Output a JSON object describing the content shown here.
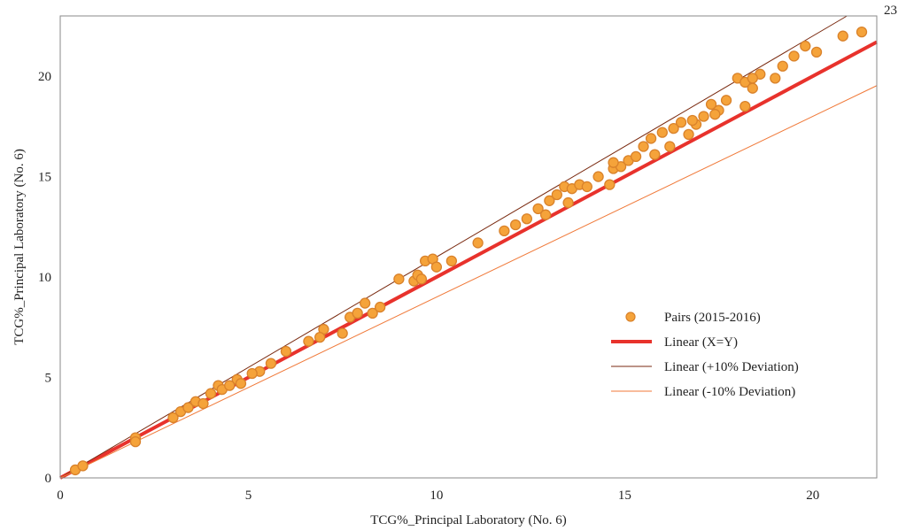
{
  "chart_data": {
    "type": "scatter",
    "title": "",
    "xlabel": "TCG%_Principal Laboratory (No. 6)",
    "ylabel": "TCG%_Principal Laboratory (No. 6)",
    "xlim": [
      0,
      21.7
    ],
    "ylim": [
      0,
      23
    ],
    "x_ticks": [
      "0",
      "5",
      "10",
      "15",
      "20"
    ],
    "y_ticks": [
      "0",
      "5",
      "10",
      "15",
      "20",
      "23"
    ],
    "grid": false,
    "legend_position": "center-right",
    "legend": [
      {
        "label": "Pairs (2015-2016)",
        "kind": "marker",
        "color": "#f5a33a"
      },
      {
        "label": "Linear (X=Y)",
        "kind": "line",
        "color": "#e8322c"
      },
      {
        "label": "Linear (+10% Deviation)",
        "kind": "line",
        "color": "#7a2a10"
      },
      {
        "label": "Linear (-10% Deviation)",
        "kind": "line",
        "color": "#f07a3a"
      }
    ],
    "lines": [
      {
        "name": "Linear (X=Y)",
        "slope": 1.0,
        "color": "#e8322c"
      },
      {
        "name": "Linear (+10% Deviation)",
        "slope": 1.1,
        "color": "#7a2a10"
      },
      {
        "name": "Linear (-10% Deviation)",
        "slope": 0.9,
        "color": "#f07a3a"
      }
    ],
    "series": [
      {
        "name": "Pairs (2015-2016)",
        "color": "#f5a33a",
        "stroke": "#d9822b",
        "points": [
          [
            0.4,
            0.4
          ],
          [
            0.6,
            0.6
          ],
          [
            2.0,
            2.0
          ],
          [
            2.0,
            1.8
          ],
          [
            3.0,
            3.0
          ],
          [
            3.2,
            3.3
          ],
          [
            3.4,
            3.5
          ],
          [
            3.6,
            3.8
          ],
          [
            3.8,
            3.7
          ],
          [
            4.0,
            4.2
          ],
          [
            4.2,
            4.6
          ],
          [
            4.3,
            4.4
          ],
          [
            4.7,
            4.9
          ],
          [
            4.8,
            4.7
          ],
          [
            5.3,
            5.3
          ],
          [
            5.6,
            5.7
          ],
          [
            6.0,
            6.3
          ],
          [
            6.6,
            6.8
          ],
          [
            7.0,
            7.4
          ],
          [
            7.5,
            7.2
          ],
          [
            7.7,
            8.0
          ],
          [
            7.9,
            8.2
          ],
          [
            8.1,
            8.7
          ],
          [
            8.3,
            8.2
          ],
          [
            8.5,
            8.5
          ],
          [
            9.0,
            9.9
          ],
          [
            9.4,
            9.8
          ],
          [
            9.5,
            10.1
          ],
          [
            9.7,
            10.8
          ],
          [
            9.9,
            10.9
          ],
          [
            10.0,
            10.5
          ],
          [
            10.4,
            10.8
          ],
          [
            11.1,
            11.7
          ],
          [
            11.8,
            12.3
          ],
          [
            12.1,
            12.6
          ],
          [
            12.4,
            12.9
          ],
          [
            12.7,
            13.4
          ],
          [
            13.0,
            13.8
          ],
          [
            13.2,
            14.1
          ],
          [
            13.4,
            14.5
          ],
          [
            13.6,
            14.4
          ],
          [
            13.8,
            14.6
          ],
          [
            13.5,
            13.7
          ],
          [
            14.0,
            14.5
          ],
          [
            14.3,
            15.0
          ],
          [
            14.6,
            14.6
          ],
          [
            14.7,
            15.4
          ],
          [
            14.9,
            15.5
          ],
          [
            15.1,
            15.8
          ],
          [
            15.3,
            16.0
          ],
          [
            15.5,
            16.5
          ],
          [
            15.7,
            16.9
          ],
          [
            15.8,
            16.1
          ],
          [
            16.0,
            17.2
          ],
          [
            16.2,
            16.5
          ],
          [
            16.3,
            17.4
          ],
          [
            16.5,
            17.7
          ],
          [
            16.7,
            17.1
          ],
          [
            16.9,
            17.6
          ],
          [
            17.1,
            18.0
          ],
          [
            17.3,
            18.6
          ],
          [
            17.5,
            18.3
          ],
          [
            17.7,
            18.8
          ],
          [
            18.0,
            19.9
          ],
          [
            18.2,
            19.7
          ],
          [
            18.4,
            19.4
          ],
          [
            18.6,
            20.1
          ],
          [
            18.2,
            18.5
          ],
          [
            19.0,
            19.9
          ],
          [
            19.2,
            20.5
          ],
          [
            19.5,
            21.0
          ],
          [
            19.8,
            21.5
          ],
          [
            20.1,
            21.2
          ],
          [
            20.8,
            22.0
          ],
          [
            21.3,
            22.2
          ],
          [
            16.8,
            17.8
          ],
          [
            17.4,
            18.1
          ],
          [
            12.9,
            13.1
          ],
          [
            14.7,
            15.7
          ],
          [
            9.6,
            9.9
          ],
          [
            6.9,
            7.0
          ],
          [
            4.5,
            4.6
          ],
          [
            5.1,
            5.2
          ],
          [
            18.4,
            19.9
          ]
        ]
      }
    ]
  }
}
